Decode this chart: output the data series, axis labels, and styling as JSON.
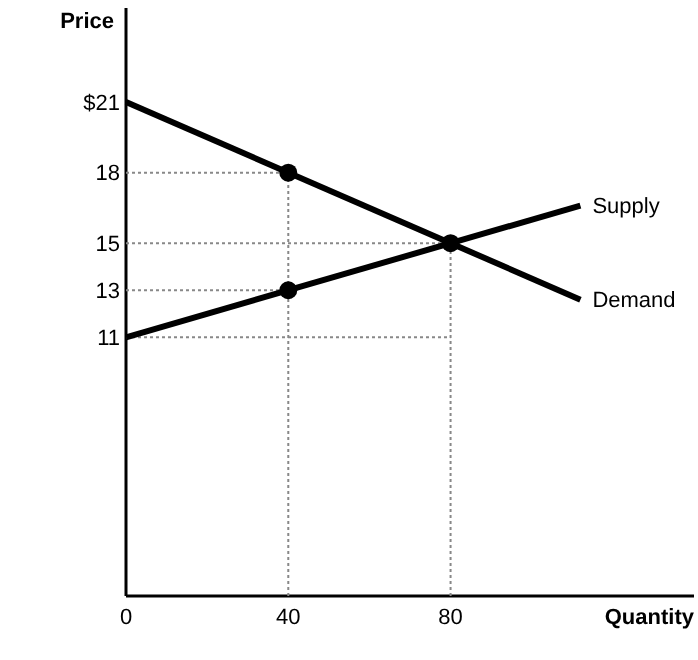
{
  "chart_data": {
    "type": "line",
    "xlabel": "Quantity",
    "ylabel": "Price",
    "xlim": [
      0,
      140
    ],
    "ylim": [
      0,
      25
    ],
    "xticks": [
      0,
      40,
      80
    ],
    "yticks": [
      11,
      13,
      15,
      18,
      {
        "value": 21,
        "label": "$21"
      }
    ],
    "grid": false,
    "legend": false,
    "series": [
      {
        "x": [
          0,
          40
        ],
        "values": [
          18,
          18
        ],
        "color": "#888888",
        "line_style": "dotted",
        "marker": "none"
      },
      {
        "x": [
          0,
          80
        ],
        "values": [
          15,
          15
        ],
        "color": "#888888",
        "line_style": "dotted",
        "marker": "none"
      },
      {
        "x": [
          0,
          40
        ],
        "values": [
          13,
          13
        ],
        "color": "#888888",
        "line_style": "dotted",
        "marker": "none"
      },
      {
        "x": [
          0,
          80
        ],
        "values": [
          11,
          11
        ],
        "color": "#888888",
        "line_style": "dotted",
        "marker": "none"
      },
      {
        "x": [
          40,
          40
        ],
        "values": [
          0,
          18
        ],
        "color": "#888888",
        "line_style": "dotted",
        "marker": "none"
      },
      {
        "x": [
          80,
          80
        ],
        "values": [
          0,
          15
        ],
        "color": "#888888",
        "line_style": "dotted",
        "marker": "none"
      },
      {
        "name": "Supply",
        "x": [
          0,
          112
        ],
        "values": [
          11,
          16.6
        ],
        "color": "#000000",
        "line_style": "solid",
        "marker": "none"
      },
      {
        "name": "Demand",
        "x": [
          0,
          112
        ],
        "values": [
          21,
          12.6
        ],
        "color": "#000000",
        "line_style": "solid",
        "marker": "none"
      },
      {
        "type": "scatter",
        "x": [
          40,
          40,
          80
        ],
        "values": [
          18,
          13,
          15
        ],
        "color": "#000000",
        "marker": "circle"
      }
    ]
  }
}
